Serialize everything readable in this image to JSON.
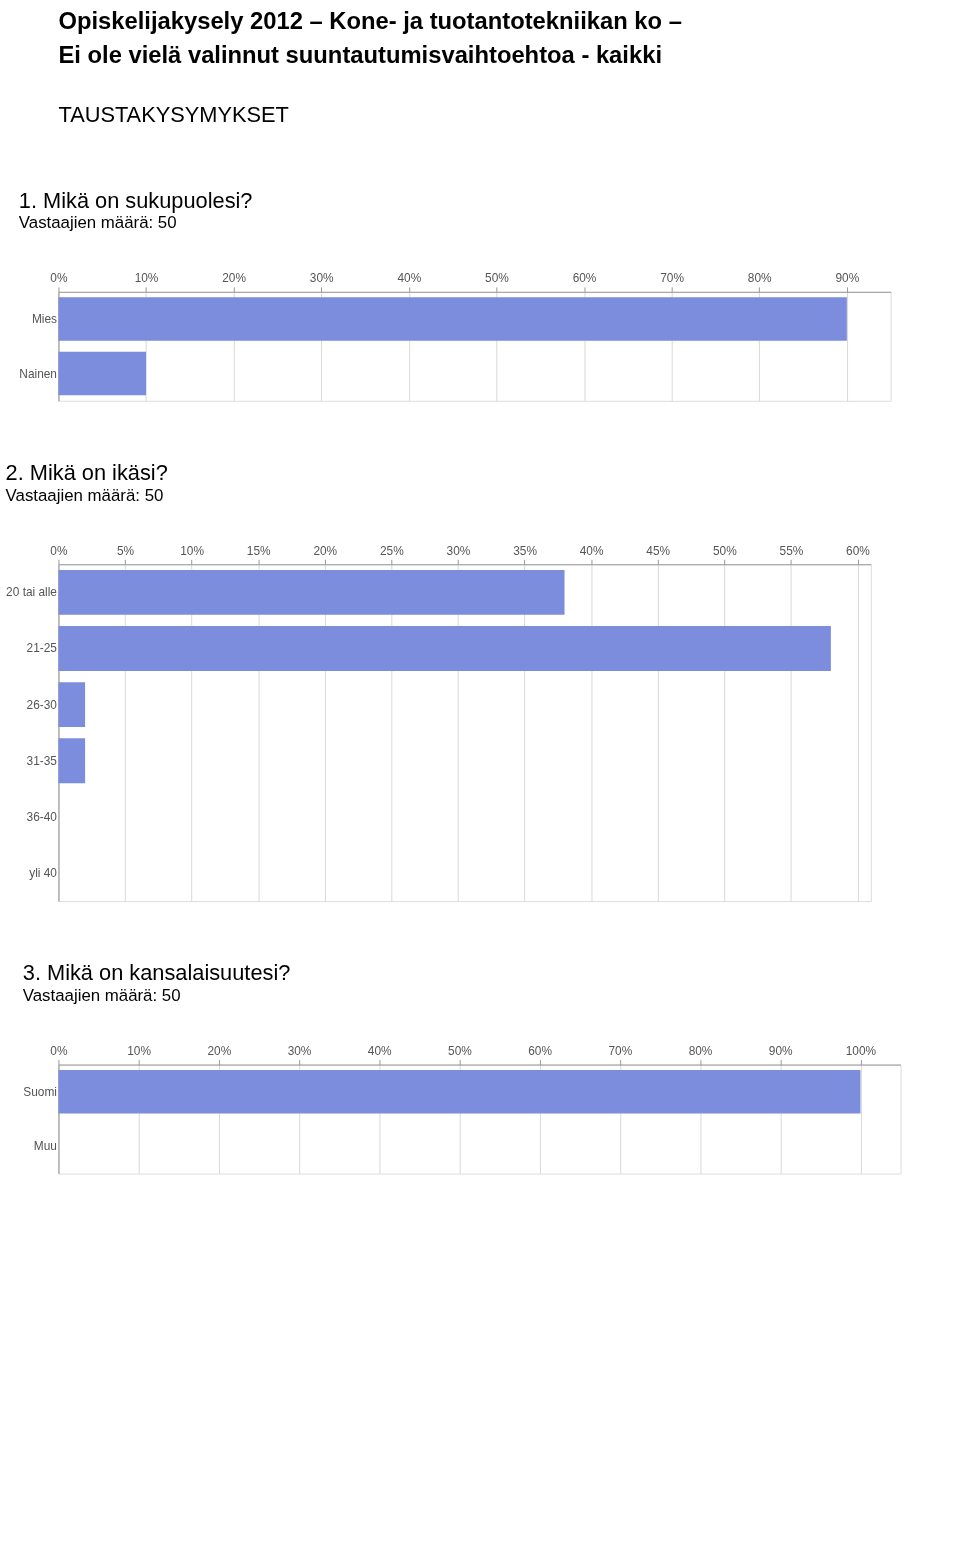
{
  "chart_data": [
    {
      "type": "bar",
      "orientation": "horizontal",
      "title": "1. Mikä on sukupuolesi?",
      "subtitle": "Vastaajien määrä: 50",
      "annotations": [
        "Opiskelijakysely 2012 – Kone- ja tuotantotekniikan ko –",
        "Ei ole vielä valinnut suuntautumisvaihtoehtoa - kaikki",
        "TAUSTAKYSYMYKSET"
      ],
      "categories": [
        "Mies",
        "Nainen"
      ],
      "values": [
        90,
        10
      ],
      "color": "#7b8ddc",
      "xlim": [
        0,
        95
      ],
      "xticks": [
        {
          "value": 0,
          "label": "0%"
        },
        {
          "value": 10,
          "label": "10%"
        },
        {
          "value": 20,
          "label": "20%"
        },
        {
          "value": 30,
          "label": "30%"
        },
        {
          "value": 40,
          "label": "40%"
        },
        {
          "value": 50,
          "label": "50%"
        },
        {
          "value": 60,
          "label": "60%"
        },
        {
          "value": 70,
          "label": "70%"
        },
        {
          "value": 80,
          "label": "80%"
        },
        {
          "value": 90,
          "label": "90%"
        }
      ],
      "grid": "x",
      "legend": false
    },
    {
      "type": "bar",
      "orientation": "horizontal",
      "title": "2. Mikä on ikäsi?",
      "subtitle": "Vastaajien määrä: 50",
      "categories": [
        "20 tai alle",
        "21-25",
        "26-30",
        "31-35",
        "36-40",
        "yli 40"
      ],
      "values": [
        38,
        58,
        2,
        2,
        0,
        0
      ],
      "color": "#7b8ddc",
      "xlim": [
        0,
        61
      ],
      "xticks": [
        {
          "value": 0,
          "label": "0%"
        },
        {
          "value": 5,
          "label": "5%"
        },
        {
          "value": 10,
          "label": "10%"
        },
        {
          "value": 15,
          "label": "15%"
        },
        {
          "value": 20,
          "label": "20%"
        },
        {
          "value": 25,
          "label": "25%"
        },
        {
          "value": 30,
          "label": "30%"
        },
        {
          "value": 35,
          "label": "35%"
        },
        {
          "value": 40,
          "label": "40%"
        },
        {
          "value": 45,
          "label": "45%"
        },
        {
          "value": 50,
          "label": "50%"
        },
        {
          "value": 55,
          "label": "55%"
        },
        {
          "value": 60,
          "label": "60%"
        }
      ],
      "grid": "x",
      "legend": false
    },
    {
      "type": "bar",
      "orientation": "horizontal",
      "title": "3. Mikä on kansalaisuutesi?",
      "subtitle": "Vastaajien määrä: 50",
      "categories": [
        "Suomi",
        "Muu"
      ],
      "values": [
        100,
        0
      ],
      "color": "#7b8ddc",
      "xlim": [
        0,
        105
      ],
      "xticks": [
        {
          "value": 0,
          "label": "0%"
        },
        {
          "value": 10,
          "label": "10%"
        },
        {
          "value": 20,
          "label": "20%"
        },
        {
          "value": 30,
          "label": "30%"
        },
        {
          "value": 40,
          "label": "40%"
        },
        {
          "value": 50,
          "label": "50%"
        },
        {
          "value": 60,
          "label": "60%"
        },
        {
          "value": 70,
          "label": "70%"
        },
        {
          "value": 80,
          "label": "80%"
        },
        {
          "value": 90,
          "label": "90%"
        },
        {
          "value": 100,
          "label": "100%"
        }
      ],
      "grid": "x",
      "legend": false
    }
  ]
}
